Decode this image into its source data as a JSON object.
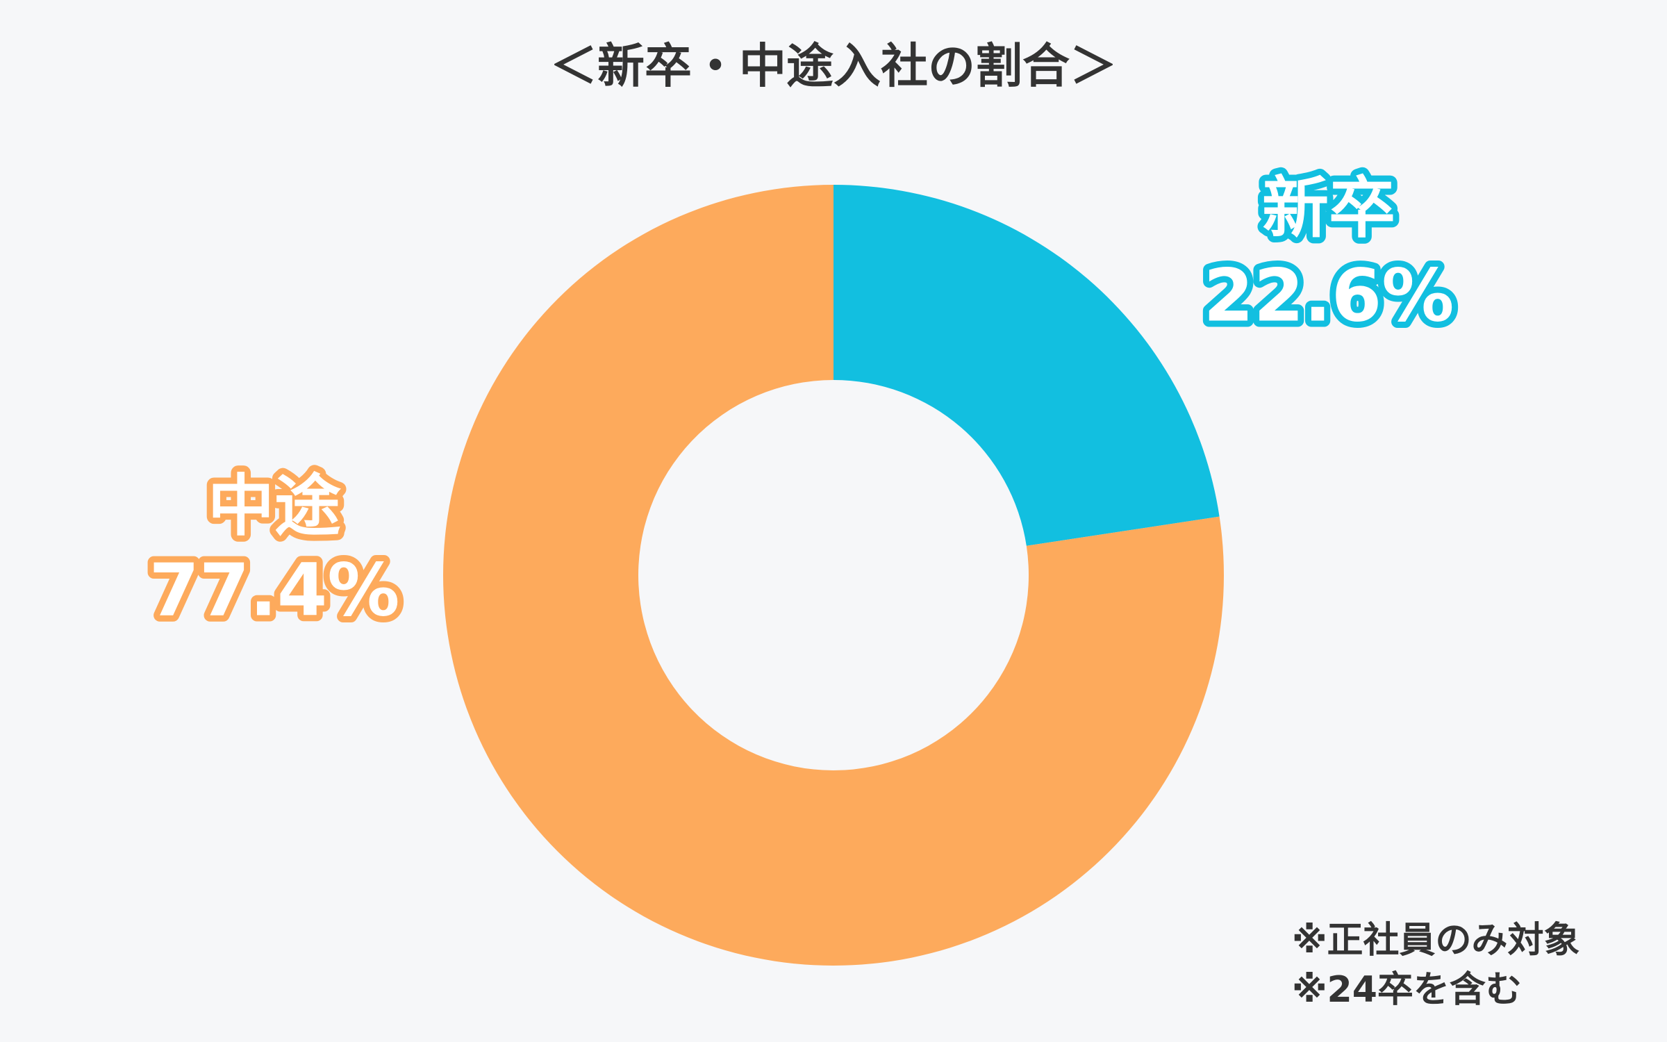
{
  "chart_data": {
    "type": "donut",
    "title": "＜新卒・中途入社の割合＞",
    "categories": [
      "新卒",
      "中途"
    ],
    "values": [
      22.6,
      77.4
    ],
    "value_labels": [
      "22.6%",
      "77.4%"
    ],
    "colors": [
      "#12bfe0",
      "#fdaa5c"
    ],
    "notes": [
      "※正社員のみ対象",
      "※24卒を含む"
    ]
  }
}
